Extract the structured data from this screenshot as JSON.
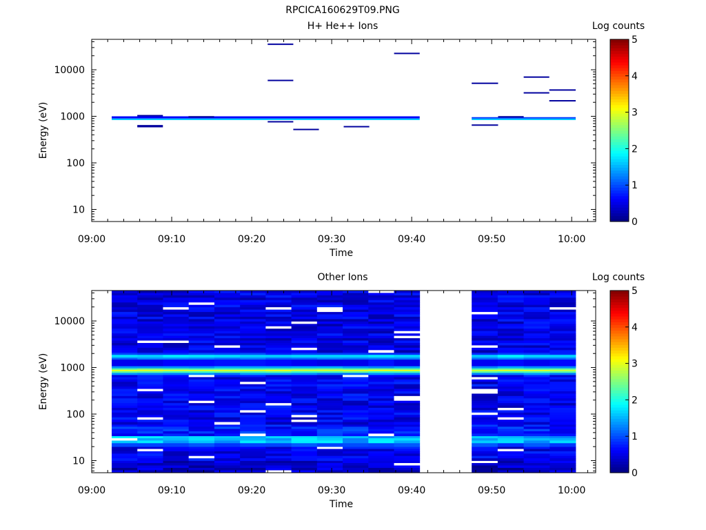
{
  "figure_title": "RPCICA160629T09.PNG",
  "colorbar": {
    "label": "Log counts",
    "ticks": [
      "0",
      "1",
      "2",
      "3",
      "4",
      "5"
    ],
    "range": [
      0,
      5
    ],
    "colormap": "jet"
  },
  "chart_data": [
    {
      "type": "heatmap",
      "title": "H+ He++ Ions",
      "xlabel": "Time",
      "ylabel": "Energy (eV)",
      "x_ticks": [
        "09:00",
        "09:10",
        "09:20",
        "09:30",
        "09:40",
        "09:50",
        "10:00"
      ],
      "y_ticks": [
        "10",
        "100",
        "1000",
        "10000"
      ],
      "xlim_minutes_after_0900": [
        0,
        63
      ],
      "yscale": "log",
      "ylim": [
        5.5,
        45000
      ],
      "data_gaps_minutes": [
        [
          41,
          47.5
        ]
      ],
      "value_label": "Log counts",
      "bands": [
        {
          "t0": 2.5,
          "t1": 41,
          "e_low": 830,
          "e_high": 900,
          "level": 1.6
        },
        {
          "t0": 2.5,
          "t1": 41,
          "e_low": 900,
          "e_high": 1000,
          "level": 0.6
        },
        {
          "t0": 47.5,
          "t1": 60.5,
          "e_low": 830,
          "e_high": 900,
          "level": 1.6
        },
        {
          "t0": 47.5,
          "t1": 60.5,
          "e_low": 900,
          "e_high": 960,
          "level": 0.9
        },
        {
          "t0": 5.7,
          "t1": 8.9,
          "e_low": 580,
          "e_high": 650,
          "level": 0.15
        },
        {
          "t0": 5.7,
          "t1": 8.9,
          "e_low": 1030,
          "e_high": 1070,
          "level": 0.15
        },
        {
          "t0": 12.1,
          "t1": 15.3,
          "e_low": 960,
          "e_high": 1010,
          "level": 0.15
        },
        {
          "t0": 22.0,
          "t1": 25.2,
          "e_low": 740,
          "e_high": 790,
          "level": 0.15
        },
        {
          "t0": 22.0,
          "t1": 25.2,
          "e_low": 5800,
          "e_high": 6100,
          "level": 0.15
        },
        {
          "t0": 22.0,
          "t1": 25.2,
          "e_low": 35000,
          "e_high": 36500,
          "level": 0.15
        },
        {
          "t0": 25.2,
          "t1": 28.4,
          "e_low": 510,
          "e_high": 540,
          "level": 0.15
        },
        {
          "t0": 31.5,
          "t1": 34.7,
          "e_low": 580,
          "e_high": 620,
          "level": 0.15
        },
        {
          "t0": 37.8,
          "t1": 41.0,
          "e_low": 22000,
          "e_high": 23200,
          "level": 0.15
        },
        {
          "t0": 47.5,
          "t1": 50.8,
          "e_low": 5000,
          "e_high": 5300,
          "level": 0.15
        },
        {
          "t0": 47.5,
          "t1": 50.8,
          "e_low": 630,
          "e_high": 670,
          "level": 0.15
        },
        {
          "t0": 50.8,
          "t1": 54.0,
          "e_low": 960,
          "e_high": 1010,
          "level": 0.15
        },
        {
          "t0": 54.0,
          "t1": 57.2,
          "e_low": 6900,
          "e_high": 7200,
          "level": 0.15
        },
        {
          "t0": 54.0,
          "t1": 57.2,
          "e_low": 3100,
          "e_high": 3300,
          "level": 0.15
        },
        {
          "t0": 57.2,
          "t1": 60.5,
          "e_low": 3600,
          "e_high": 3800,
          "level": 0.15
        },
        {
          "t0": 57.2,
          "t1": 60.5,
          "e_low": 2100,
          "e_high": 2230,
          "level": 0.15
        }
      ]
    },
    {
      "type": "heatmap",
      "title": "Other Ions",
      "xlabel": "Time",
      "ylabel": "Energy (eV)",
      "x_ticks": [
        "09:00",
        "09:10",
        "09:20",
        "09:30",
        "09:40",
        "09:50",
        "10:00"
      ],
      "y_ticks": [
        "10",
        "100",
        "1000",
        "10000"
      ],
      "xlim_minutes_after_0900": [
        0,
        63
      ],
      "yscale": "log",
      "ylim": [
        5.5,
        45000
      ],
      "data_gaps_minutes": [
        [
          41,
          47.5
        ]
      ],
      "value_label": "Log counts",
      "segments": [
        [
          2.5,
          41
        ],
        [
          47.5,
          60.5
        ]
      ],
      "column_width_minutes": 3.2,
      "energy_profile": [
        {
          "e_low": 5.5,
          "e_high": 10,
          "level": 0.35
        },
        {
          "e_low": 10,
          "e_high": 20,
          "level": 0.55
        },
        {
          "e_low": 20,
          "e_high": 24,
          "level": 0.95
        },
        {
          "e_low": 24,
          "e_high": 34,
          "level": 1.55
        },
        {
          "e_low": 34,
          "e_high": 60,
          "level": 0.75
        },
        {
          "e_low": 60,
          "e_high": 700,
          "level": 0.55
        },
        {
          "e_low": 700,
          "e_high": 780,
          "level": 1.3
        },
        {
          "e_low": 780,
          "e_high": 850,
          "level": 2.3
        },
        {
          "e_low": 850,
          "e_high": 900,
          "level": 3.0
        },
        {
          "e_low": 900,
          "e_high": 970,
          "level": 2.4
        },
        {
          "e_low": 970,
          "e_high": 1080,
          "level": 1.4
        },
        {
          "e_low": 1080,
          "e_high": 1500,
          "level": 0.6
        },
        {
          "e_low": 1500,
          "e_high": 1650,
          "level": 1.2
        },
        {
          "e_low": 1650,
          "e_high": 1900,
          "level": 1.7
        },
        {
          "e_low": 1900,
          "e_high": 2100,
          "level": 0.9
        },
        {
          "e_low": 2100,
          "e_high": 45000,
          "level": 0.5
        }
      ]
    }
  ]
}
